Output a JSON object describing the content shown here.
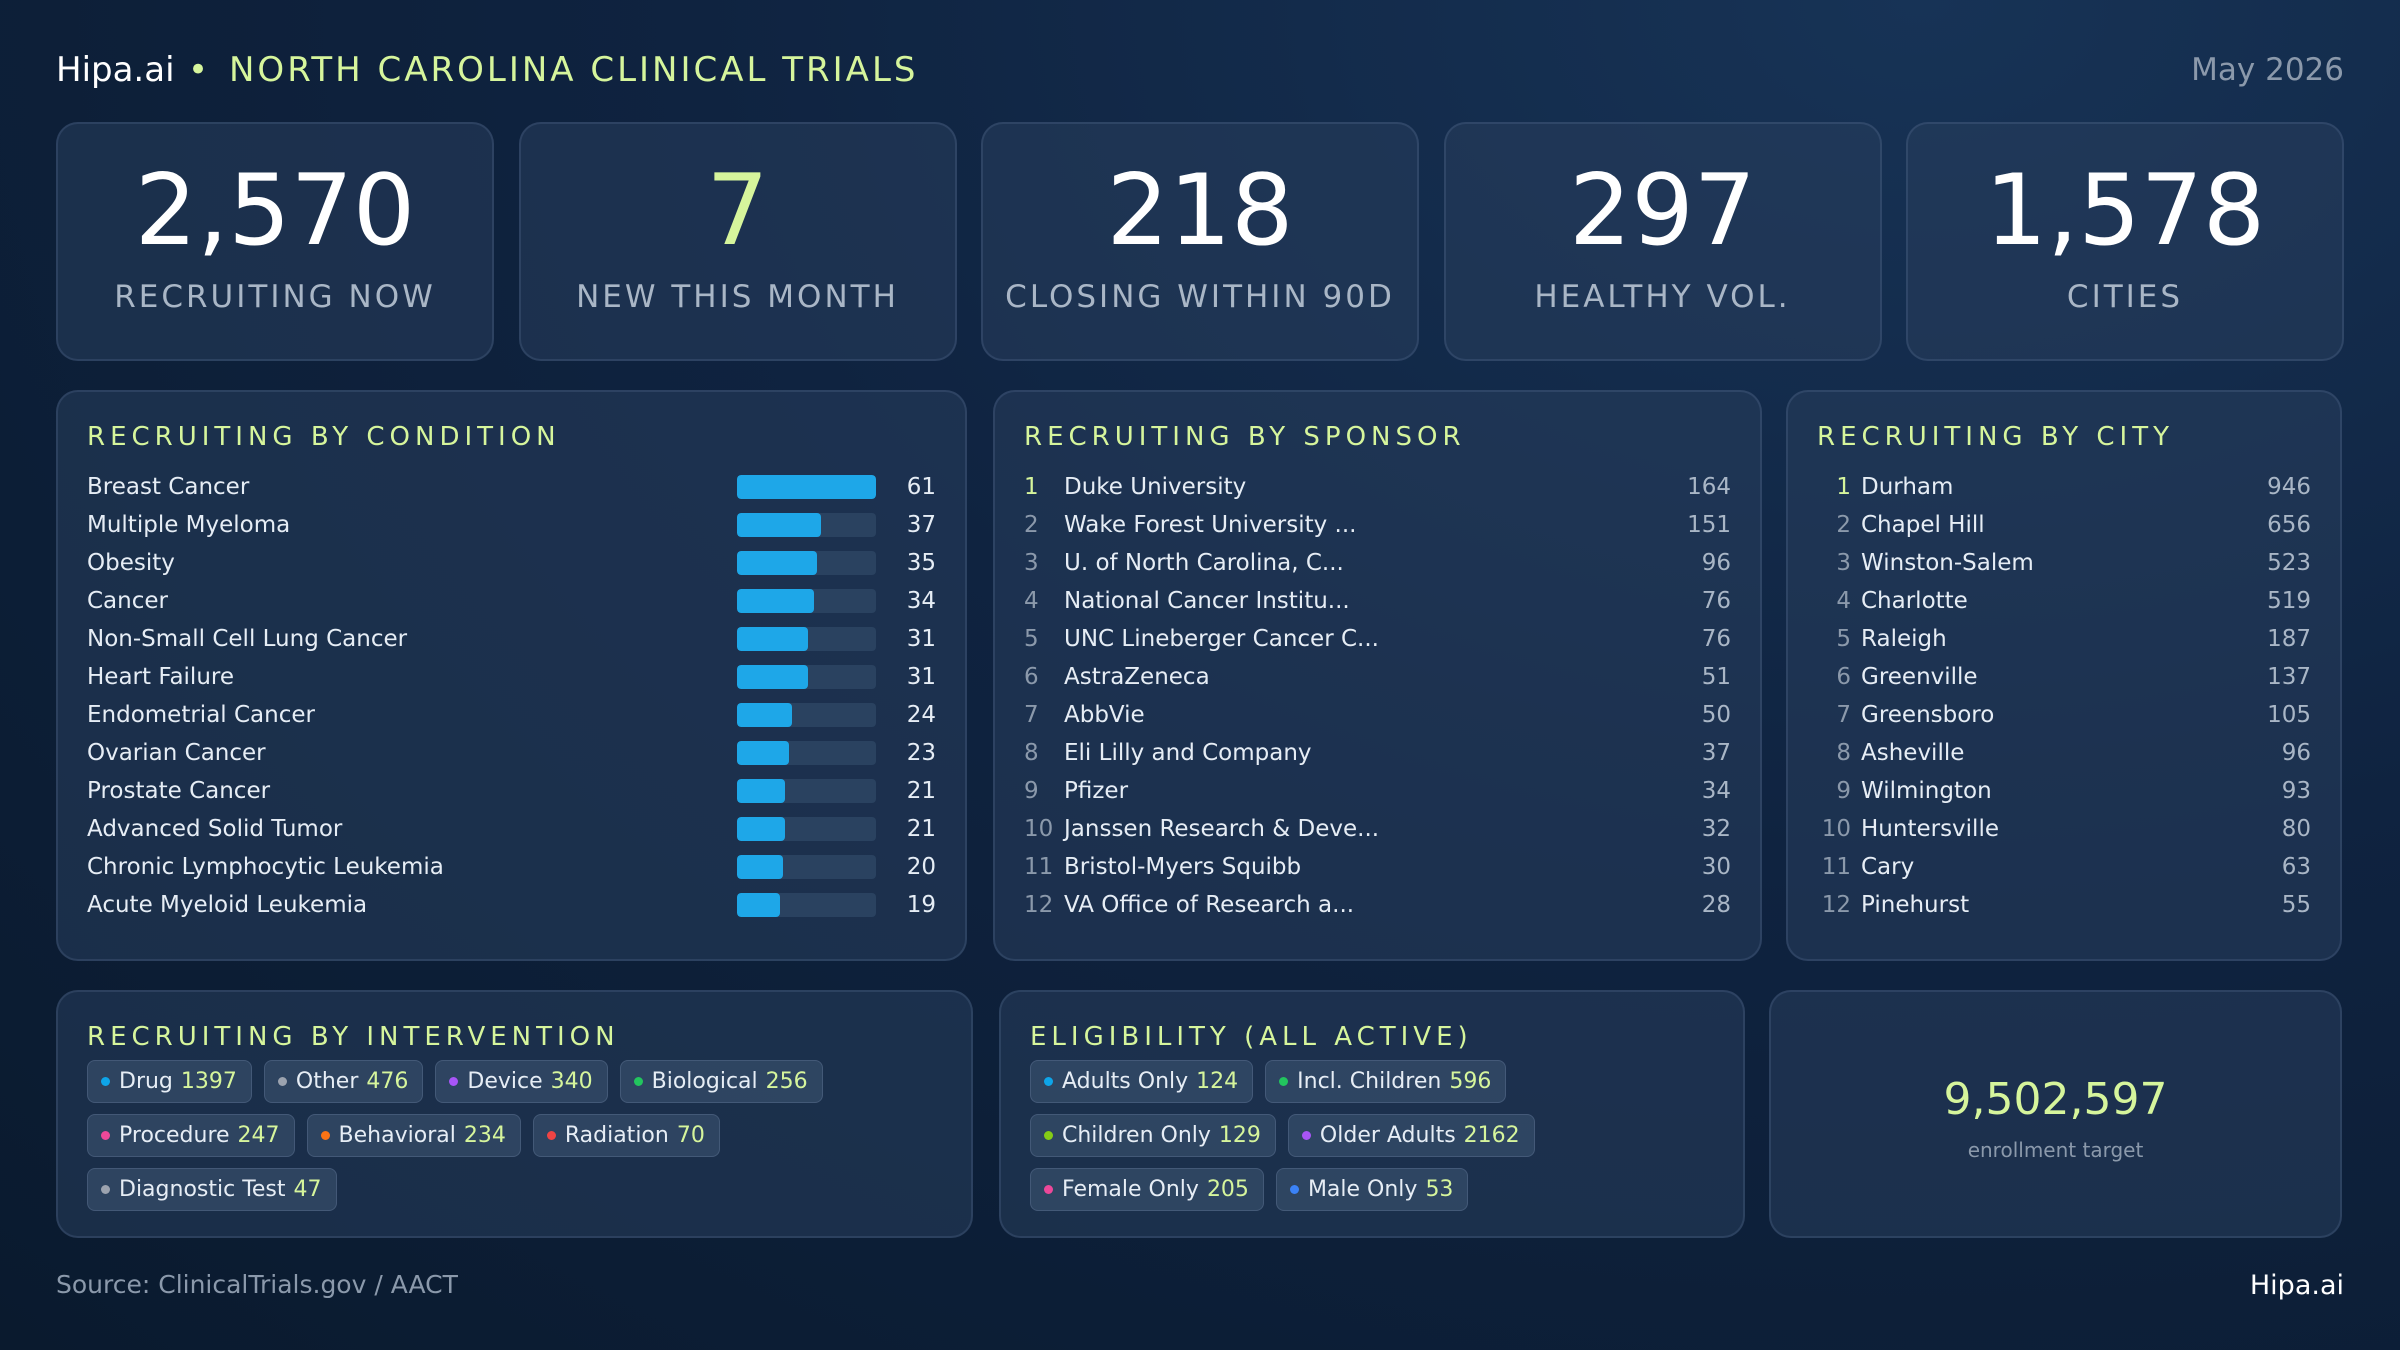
{
  "header": {
    "brand": "Hipa.ai",
    "title": "NORTH CAROLINA CLINICAL TRIALS",
    "date": "May 2026"
  },
  "kpis": [
    {
      "value": "2,570",
      "label": "RECRUITING NOW"
    },
    {
      "value": "7",
      "label": "NEW THIS MONTH"
    },
    {
      "value": "218",
      "label": "CLOSING WITHIN 90D"
    },
    {
      "value": "297",
      "label": "HEALTHY VOL."
    },
    {
      "value": "1,578",
      "label": "CITIES"
    }
  ],
  "conditions": {
    "title": "RECRUITING BY CONDITION",
    "bar_color": "#1ea7e8",
    "items": [
      {
        "name": "Breast Cancer",
        "value": 61
      },
      {
        "name": "Multiple Myeloma",
        "value": 37
      },
      {
        "name": "Obesity",
        "value": 35
      },
      {
        "name": "Cancer",
        "value": 34
      },
      {
        "name": "Non-Small Cell Lung Cancer",
        "value": 31
      },
      {
        "name": "Heart Failure",
        "value": 31
      },
      {
        "name": "Endometrial Cancer",
        "value": 24
      },
      {
        "name": "Ovarian Cancer",
        "value": 23
      },
      {
        "name": "Prostate Cancer",
        "value": 21
      },
      {
        "name": "Advanced Solid Tumor",
        "value": 21
      },
      {
        "name": "Chronic Lymphocytic Leukemia",
        "value": 20
      },
      {
        "name": "Acute Myeloid Leukemia",
        "value": 19
      }
    ]
  },
  "sponsors": {
    "title": "RECRUITING BY SPONSOR",
    "items": [
      {
        "rank": 1,
        "name": "Duke University",
        "value": 164
      },
      {
        "rank": 2,
        "name": "Wake Forest University ...",
        "value": 151
      },
      {
        "rank": 3,
        "name": "U. of North Carolina, C...",
        "value": 96
      },
      {
        "rank": 4,
        "name": "National Cancer Institu...",
        "value": 76
      },
      {
        "rank": 5,
        "name": "UNC Lineberger Cancer C...",
        "value": 76
      },
      {
        "rank": 6,
        "name": "AstraZeneca",
        "value": 51
      },
      {
        "rank": 7,
        "name": "AbbVie",
        "value": 50
      },
      {
        "rank": 8,
        "name": "Eli Lilly and Company",
        "value": 37
      },
      {
        "rank": 9,
        "name": "Pfizer",
        "value": 34
      },
      {
        "rank": 10,
        "name": "Janssen Research & Deve...",
        "value": 32
      },
      {
        "rank": 11,
        "name": "Bristol-Myers Squibb",
        "value": 30
      },
      {
        "rank": 12,
        "name": "VA Office of Research a...",
        "value": 28
      }
    ]
  },
  "cities": {
    "title": "RECRUITING BY CITY",
    "items": [
      {
        "rank": 1,
        "name": "Durham",
        "value": 946
      },
      {
        "rank": 2,
        "name": "Chapel Hill",
        "value": 656
      },
      {
        "rank": 3,
        "name": "Winston-Salem",
        "value": 523
      },
      {
        "rank": 4,
        "name": "Charlotte",
        "value": 519
      },
      {
        "rank": 5,
        "name": "Raleigh",
        "value": 187
      },
      {
        "rank": 6,
        "name": "Greenville",
        "value": 137
      },
      {
        "rank": 7,
        "name": "Greensboro",
        "value": 105
      },
      {
        "rank": 8,
        "name": "Asheville",
        "value": 96
      },
      {
        "rank": 9,
        "name": "Wilmington",
        "value": 93
      },
      {
        "rank": 10,
        "name": "Huntersville",
        "value": 80
      },
      {
        "rank": 11,
        "name": "Cary",
        "value": 63
      },
      {
        "rank": 12,
        "name": "Pinehurst",
        "value": 55
      }
    ]
  },
  "interventions": {
    "title": "RECRUITING BY INTERVENTION",
    "items": [
      {
        "name": "Drug",
        "value": 1397,
        "color": "#0ea5e9"
      },
      {
        "name": "Other",
        "value": 476,
        "color": "#9ca3af"
      },
      {
        "name": "Device",
        "value": 340,
        "color": "#a855f7"
      },
      {
        "name": "Biological",
        "value": 256,
        "color": "#22c55e"
      },
      {
        "name": "Procedure",
        "value": 247,
        "color": "#ec4899"
      },
      {
        "name": "Behavioral",
        "value": 234,
        "color": "#f97316"
      },
      {
        "name": "Radiation",
        "value": 70,
        "color": "#ef4444"
      },
      {
        "name": "Diagnostic Test",
        "value": 47,
        "color": "#9ca3af"
      }
    ]
  },
  "eligibility": {
    "title": "ELIGIBILITY (ALL ACTIVE)",
    "items": [
      {
        "name": "Adults Only",
        "value": 124,
        "color": "#0ea5e9"
      },
      {
        "name": "Incl. Children",
        "value": 596,
        "color": "#22c55e"
      },
      {
        "name": "Children Only",
        "value": 129,
        "color": "#84cc16"
      },
      {
        "name": "Older Adults",
        "value": 2162,
        "color": "#a855f7"
      },
      {
        "name": "Female Only",
        "value": 205,
        "color": "#ec4899"
      },
      {
        "name": "Male Only",
        "value": 53,
        "color": "#3b82f6"
      }
    ]
  },
  "enrollment": {
    "value": "9,502,597",
    "label": "enrollment target"
  },
  "footer": {
    "source": "Source: ClinicalTrials.gov / AACT",
    "brand": "Hipa.ai"
  }
}
